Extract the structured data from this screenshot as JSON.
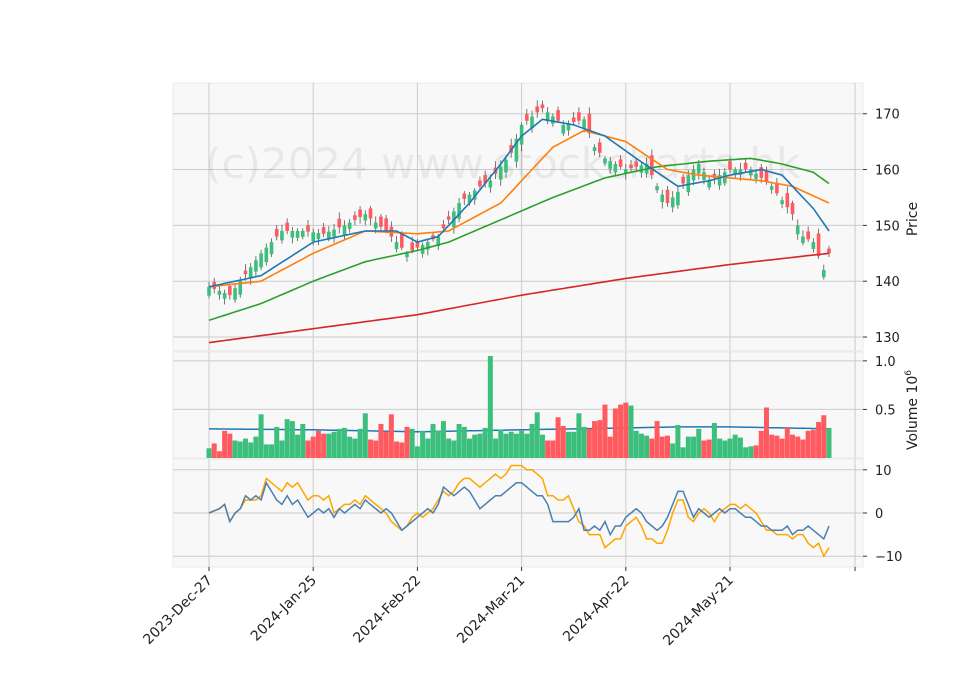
{
  "watermark": "(c)2024 www.stockcharts.hk",
  "chart_data": {
    "type": "candlestick",
    "x_tick_labels": [
      "2023-Dec-27",
      "2024-Jan-25",
      "2024-Feb-22",
      "2024-Mar-21",
      "2024-Apr-22",
      "2024-May-21"
    ],
    "x_tick_index": [
      0,
      20,
      40,
      60,
      80,
      100
    ],
    "n_sessions": 120,
    "grid": true,
    "colors": {
      "up": "#3cbf7d",
      "down": "#ff5a5f",
      "ma_short": "#1f77b4",
      "ma_mid": "#ff7f0e",
      "ma_long": "#2ca02c",
      "ma_200": "#d62728",
      "vol_avg": "#1f77b4",
      "osc_fast": "#4a7fb0",
      "osc_slow": "#ffa500"
    },
    "price_panel": {
      "ylabel": "Price",
      "ylim": [
        127.5,
        175.5
      ],
      "yticks": [
        130,
        140,
        150,
        160,
        170
      ],
      "close_anchors": [
        [
          0,
          139
        ],
        [
          4,
          137.5
        ],
        [
          10,
          145
        ],
        [
          14,
          149
        ],
        [
          18,
          149
        ],
        [
          22,
          148.5
        ],
        [
          26,
          150
        ],
        [
          30,
          152
        ],
        [
          34,
          149
        ],
        [
          36,
          147
        ],
        [
          38,
          145
        ],
        [
          42,
          147
        ],
        [
          44,
          148
        ],
        [
          48,
          154
        ],
        [
          52,
          157
        ],
        [
          54,
          158
        ],
        [
          58,
          163
        ],
        [
          60,
          168
        ],
        [
          64,
          171
        ],
        [
          68,
          168
        ],
        [
          72,
          169
        ],
        [
          74,
          164
        ],
        [
          76,
          162
        ],
        [
          80,
          160
        ],
        [
          84,
          161
        ],
        [
          86,
          157
        ],
        [
          88,
          154
        ],
        [
          90,
          156
        ],
        [
          92,
          159
        ],
        [
          94,
          161
        ],
        [
          96,
          158
        ],
        [
          100,
          160
        ],
        [
          104,
          160
        ],
        [
          108,
          157
        ],
        [
          112,
          152
        ],
        [
          114,
          148
        ],
        [
          116,
          147
        ],
        [
          118,
          142
        ],
        [
          119,
          145
        ]
      ],
      "ma_short": [
        [
          0,
          139
        ],
        [
          10,
          141
        ],
        [
          20,
          147
        ],
        [
          30,
          149
        ],
        [
          36,
          149
        ],
        [
          40,
          147
        ],
        [
          44,
          148
        ],
        [
          50,
          154
        ],
        [
          56,
          161
        ],
        [
          60,
          166
        ],
        [
          64,
          169
        ],
        [
          70,
          168
        ],
        [
          76,
          166
        ],
        [
          82,
          162
        ],
        [
          90,
          157
        ],
        [
          96,
          158
        ],
        [
          100,
          159
        ],
        [
          106,
          160
        ],
        [
          110,
          159
        ],
        [
          116,
          153
        ],
        [
          119,
          149
        ]
      ],
      "ma_mid": [
        [
          0,
          139
        ],
        [
          10,
          140
        ],
        [
          20,
          145
        ],
        [
          30,
          149
        ],
        [
          40,
          148.5
        ],
        [
          46,
          149
        ],
        [
          56,
          154
        ],
        [
          60,
          158
        ],
        [
          66,
          164
        ],
        [
          72,
          167
        ],
        [
          80,
          165
        ],
        [
          88,
          160
        ],
        [
          94,
          159
        ],
        [
          100,
          158.5
        ],
        [
          106,
          158
        ],
        [
          112,
          157
        ],
        [
          119,
          154
        ]
      ],
      "ma_long": [
        [
          0,
          133
        ],
        [
          10,
          136
        ],
        [
          20,
          140
        ],
        [
          30,
          143.5
        ],
        [
          40,
          145.5
        ],
        [
          46,
          147
        ],
        [
          56,
          151
        ],
        [
          66,
          155
        ],
        [
          76,
          158.5
        ],
        [
          86,
          160.5
        ],
        [
          96,
          161.5
        ],
        [
          104,
          162
        ],
        [
          110,
          161
        ],
        [
          116,
          159.5
        ],
        [
          119,
          157.5
        ]
      ],
      "ma_200": [
        [
          0,
          129
        ],
        [
          20,
          131.5
        ],
        [
          40,
          134
        ],
        [
          60,
          137.5
        ],
        [
          80,
          140.5
        ],
        [
          100,
          143
        ],
        [
          119,
          145
        ]
      ]
    },
    "volume_panel": {
      "ylabel": "Volume  $10^6$",
      "ylim": [
        0,
        1.05
      ],
      "yticks": [
        0.5,
        1.0
      ],
      "volumes": [
        0.1,
        0.15,
        0.07,
        0.28,
        0.25,
        0.18,
        0.17,
        0.2,
        0.16,
        0.22,
        0.45,
        0.14,
        0.14,
        0.32,
        0.18,
        0.4,
        0.38,
        0.24,
        0.35,
        0.18,
        0.22,
        0.28,
        0.25,
        0.25,
        0.27,
        0.3,
        0.31,
        0.22,
        0.2,
        0.3,
        0.46,
        0.19,
        0.18,
        0.35,
        0.27,
        0.45,
        0.17,
        0.16,
        0.32,
        0.3,
        0.12,
        0.28,
        0.2,
        0.35,
        0.28,
        0.38,
        0.2,
        0.18,
        0.35,
        0.32,
        0.2,
        0.24,
        0.25,
        0.31,
        1.05,
        0.2,
        0.29,
        0.25,
        0.27,
        0.25,
        0.28,
        0.25,
        0.35,
        0.47,
        0.24,
        0.18,
        0.18,
        0.42,
        0.33,
        0.27,
        0.27,
        0.46,
        0.32,
        0.3,
        0.38,
        0.39,
        0.55,
        0.22,
        0.51,
        0.55,
        0.57,
        0.54,
        0.28,
        0.25,
        0.23,
        0.2,
        0.38,
        0.22,
        0.23,
        0.15,
        0.34,
        0.11,
        0.22,
        0.22,
        0.3,
        0.18,
        0.19,
        0.36,
        0.2,
        0.18,
        0.2,
        0.24,
        0.21,
        0.11,
        0.12,
        0.13,
        0.28,
        0.52,
        0.24,
        0.23,
        0.2,
        0.31,
        0.24,
        0.22,
        0.19,
        0.28,
        0.29,
        0.37,
        0.44,
        0.31
      ],
      "vol_avg": [
        [
          0,
          0.3
        ],
        [
          20,
          0.29
        ],
        [
          40,
          0.27
        ],
        [
          60,
          0.29
        ],
        [
          70,
          0.3
        ],
        [
          80,
          0.31
        ],
        [
          90,
          0.32
        ],
        [
          100,
          0.32
        ],
        [
          110,
          0.31
        ],
        [
          119,
          0.3
        ]
      ]
    },
    "oscillator_panel": {
      "ylim": [
        -12.5,
        12.5
      ],
      "yticks": [
        -10,
        0,
        10
      ],
      "fast": [
        [
          0,
          0
        ],
        [
          2,
          1
        ],
        [
          3,
          2
        ],
        [
          4,
          -2
        ],
        [
          5,
          0
        ],
        [
          6,
          1
        ],
        [
          7,
          4
        ],
        [
          8,
          3
        ],
        [
          9,
          4
        ],
        [
          10,
          3
        ],
        [
          11,
          7
        ],
        [
          12,
          5
        ],
        [
          13,
          3
        ],
        [
          14,
          2
        ],
        [
          15,
          4
        ],
        [
          16,
          2
        ],
        [
          17,
          3
        ],
        [
          18,
          1
        ],
        [
          19,
          -1
        ],
        [
          20,
          0
        ],
        [
          21,
          1
        ],
        [
          22,
          0
        ],
        [
          23,
          1
        ],
        [
          24,
          -1
        ],
        [
          25,
          1
        ],
        [
          26,
          0
        ],
        [
          27,
          1
        ],
        [
          28,
          2
        ],
        [
          29,
          1
        ],
        [
          30,
          3
        ],
        [
          31,
          2
        ],
        [
          32,
          1
        ],
        [
          33,
          0
        ],
        [
          34,
          1
        ],
        [
          35,
          0
        ],
        [
          36,
          -2
        ],
        [
          37,
          -4
        ],
        [
          38,
          -3
        ],
        [
          39,
          -2
        ],
        [
          40,
          -1
        ],
        [
          41,
          0
        ],
        [
          42,
          1
        ],
        [
          43,
          0
        ],
        [
          44,
          2
        ],
        [
          45,
          6
        ],
        [
          46,
          5
        ],
        [
          47,
          4
        ],
        [
          48,
          5
        ],
        [
          49,
          6
        ],
        [
          50,
          5
        ],
        [
          51,
          3
        ],
        [
          52,
          1
        ],
        [
          53,
          2
        ],
        [
          54,
          3
        ],
        [
          55,
          4
        ],
        [
          56,
          4
        ],
        [
          57,
          5
        ],
        [
          58,
          6
        ],
        [
          59,
          7
        ],
        [
          60,
          7
        ],
        [
          61,
          6
        ],
        [
          62,
          5
        ],
        [
          63,
          4
        ],
        [
          64,
          4
        ],
        [
          65,
          2
        ],
        [
          66,
          -2
        ],
        [
          67,
          -2
        ],
        [
          68,
          -2
        ],
        [
          69,
          -2
        ],
        [
          70,
          -1
        ],
        [
          71,
          1
        ],
        [
          72,
          -4
        ],
        [
          73,
          -4
        ],
        [
          74,
          -3
        ],
        [
          75,
          -4
        ],
        [
          76,
          -2
        ],
        [
          77,
          -5
        ],
        [
          78,
          -3
        ],
        [
          79,
          -3
        ],
        [
          80,
          -1
        ],
        [
          81,
          0
        ],
        [
          82,
          1
        ],
        [
          83,
          0
        ],
        [
          84,
          -2
        ],
        [
          85,
          -3
        ],
        [
          86,
          -4
        ],
        [
          87,
          -3
        ],
        [
          88,
          -1
        ],
        [
          89,
          2
        ],
        [
          90,
          5
        ],
        [
          91,
          5
        ],
        [
          92,
          2
        ],
        [
          93,
          -1
        ],
        [
          94,
          1
        ],
        [
          95,
          0
        ],
        [
          96,
          -1
        ],
        [
          97,
          0
        ],
        [
          98,
          1
        ],
        [
          99,
          0
        ],
        [
          100,
          1
        ],
        [
          101,
          1
        ],
        [
          102,
          0
        ],
        [
          103,
          -1
        ],
        [
          104,
          -1
        ],
        [
          105,
          -2
        ],
        [
          106,
          -3
        ],
        [
          107,
          -3
        ],
        [
          108,
          -4
        ],
        [
          109,
          -4
        ],
        [
          110,
          -4
        ],
        [
          111,
          -3
        ],
        [
          112,
          -5
        ],
        [
          113,
          -4
        ],
        [
          114,
          -4
        ],
        [
          115,
          -3
        ],
        [
          116,
          -4
        ],
        [
          117,
          -5
        ],
        [
          118,
          -6
        ],
        [
          119,
          -3
        ]
      ],
      "slow": [
        [
          0,
          0
        ],
        [
          2,
          1
        ],
        [
          3,
          2
        ],
        [
          4,
          -2
        ],
        [
          5,
          0
        ],
        [
          6,
          1
        ],
        [
          7,
          3
        ],
        [
          8,
          3
        ],
        [
          9,
          3
        ],
        [
          10,
          4
        ],
        [
          11,
          8
        ],
        [
          12,
          7
        ],
        [
          13,
          6
        ],
        [
          14,
          5
        ],
        [
          15,
          7
        ],
        [
          16,
          6
        ],
        [
          17,
          7
        ],
        [
          18,
          5
        ],
        [
          19,
          3
        ],
        [
          20,
          4
        ],
        [
          21,
          4
        ],
        [
          22,
          3
        ],
        [
          23,
          4
        ],
        [
          24,
          0
        ],
        [
          25,
          1
        ],
        [
          26,
          2
        ],
        [
          27,
          2
        ],
        [
          28,
          3
        ],
        [
          29,
          2
        ],
        [
          30,
          4
        ],
        [
          31,
          3
        ],
        [
          32,
          2
        ],
        [
          33,
          1
        ],
        [
          34,
          0
        ],
        [
          35,
          -2
        ],
        [
          36,
          -3
        ],
        [
          37,
          -4
        ],
        [
          38,
          -3
        ],
        [
          39,
          -1
        ],
        [
          40,
          0
        ],
        [
          41,
          -1
        ],
        [
          42,
          0
        ],
        [
          43,
          1
        ],
        [
          44,
          3
        ],
        [
          45,
          5
        ],
        [
          46,
          4
        ],
        [
          47,
          5
        ],
        [
          48,
          7
        ],
        [
          49,
          8
        ],
        [
          50,
          8
        ],
        [
          51,
          7
        ],
        [
          52,
          6
        ],
        [
          53,
          7
        ],
        [
          54,
          8
        ],
        [
          55,
          9
        ],
        [
          56,
          8
        ],
        [
          57,
          9
        ],
        [
          58,
          11
        ],
        [
          59,
          11
        ],
        [
          60,
          11
        ],
        [
          61,
          10
        ],
        [
          62,
          10
        ],
        [
          63,
          9
        ],
        [
          64,
          8
        ],
        [
          65,
          4
        ],
        [
          66,
          4
        ],
        [
          67,
          3
        ],
        [
          68,
          3
        ],
        [
          69,
          4
        ],
        [
          70,
          1
        ],
        [
          71,
          -2
        ],
        [
          72,
          -3
        ],
        [
          73,
          -5
        ],
        [
          74,
          -5
        ],
        [
          75,
          -5
        ],
        [
          76,
          -8
        ],
        [
          77,
          -7
        ],
        [
          78,
          -6
        ],
        [
          79,
          -6
        ],
        [
          80,
          -3
        ],
        [
          81,
          -2
        ],
        [
          82,
          -1
        ],
        [
          83,
          -3
        ],
        [
          84,
          -6
        ],
        [
          85,
          -6
        ],
        [
          86,
          -7
        ],
        [
          87,
          -7
        ],
        [
          88,
          -4
        ],
        [
          89,
          0
        ],
        [
          90,
          3
        ],
        [
          91,
          3
        ],
        [
          92,
          -1
        ],
        [
          93,
          -2
        ],
        [
          94,
          0
        ],
        [
          95,
          1
        ],
        [
          96,
          0
        ],
        [
          97,
          -2
        ],
        [
          98,
          0
        ],
        [
          99,
          1
        ],
        [
          100,
          2
        ],
        [
          101,
          2
        ],
        [
          102,
          1
        ],
        [
          103,
          2
        ],
        [
          104,
          1
        ],
        [
          105,
          0
        ],
        [
          106,
          -2
        ],
        [
          107,
          -4
        ],
        [
          108,
          -4
        ],
        [
          109,
          -5
        ],
        [
          110,
          -5
        ],
        [
          111,
          -5
        ],
        [
          112,
          -6
        ],
        [
          113,
          -5
        ],
        [
          114,
          -5
        ],
        [
          115,
          -7
        ],
        [
          116,
          -8
        ],
        [
          117,
          -7
        ],
        [
          118,
          -10
        ],
        [
          119,
          -8
        ]
      ]
    }
  }
}
